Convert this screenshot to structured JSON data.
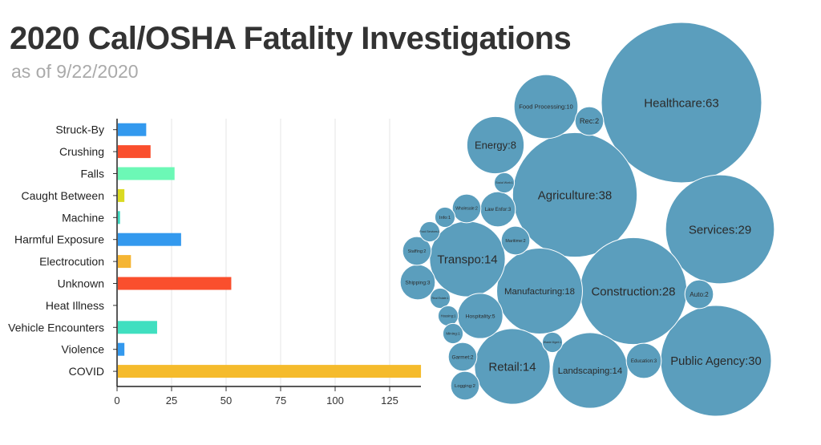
{
  "title": "2020 Cal/OSHA Fatality Investigations",
  "subtitle": "as of 9/22/2020",
  "chart_data": [
    {
      "type": "bar",
      "orientation": "horizontal",
      "categories": [
        "Struck-By",
        "Crushing",
        "Falls",
        "Caught Between",
        "Machine",
        "Harmful Exposure",
        "Electrocution",
        "Unknown",
        "Heat Illness",
        "Vehicle Encounters",
        "Violence",
        "COVID"
      ],
      "values": [
        13,
        15,
        26,
        3,
        1,
        29,
        6,
        52,
        0,
        18,
        3,
        139
      ],
      "colors": [
        "#3399ee",
        "#fa4f2d",
        "#6cf8b6",
        "#dada22",
        "#3bd8c0",
        "#3399ee",
        "#f5b533",
        "#fa4f2d",
        "#6cf8b6",
        "#40dfc0",
        "#3399ee",
        "#f5bb2c"
      ],
      "xticks": [
        0,
        25,
        50,
        75,
        100,
        125
      ],
      "xlim": [
        0,
        139
      ],
      "grid": true
    },
    {
      "type": "bubble",
      "color": "#5b9ebd",
      "items": [
        {
          "label": "Healthcare",
          "value": 63
        },
        {
          "label": "Agriculture",
          "value": 38
        },
        {
          "label": "Public Agency",
          "value": 30
        },
        {
          "label": "Services",
          "value": 29
        },
        {
          "label": "Construction",
          "value": 28
        },
        {
          "label": "Manufacturing",
          "value": 18
        },
        {
          "label": "Transpo",
          "value": 14
        },
        {
          "label": "Retail",
          "value": 14
        },
        {
          "label": "Landscaping",
          "value": 14
        },
        {
          "label": "Food Processing",
          "value": 10
        },
        {
          "label": "Energy",
          "value": 8
        },
        {
          "label": "Hospitality",
          "value": 5
        },
        {
          "label": "Education",
          "value": 3
        },
        {
          "label": "Shipping",
          "value": 3
        },
        {
          "label": "Law Enfor",
          "value": 3
        },
        {
          "label": "Staffing",
          "value": 2
        },
        {
          "label": "Wholesale",
          "value": 2
        },
        {
          "label": "Maritime",
          "value": 2
        },
        {
          "label": "Garmet",
          "value": 2
        },
        {
          "label": "Logging",
          "value": 2
        },
        {
          "label": "Auto",
          "value": 2
        },
        {
          "label": "Rec",
          "value": 2
        },
        {
          "label": "Info",
          "value": 1
        },
        {
          "label": "Food Services",
          "value": 1
        },
        {
          "label": "Social Work",
          "value": 1
        },
        {
          "label": "Real Estate",
          "value": 1
        },
        {
          "label": "Housing",
          "value": 1
        },
        {
          "label": "Mining",
          "value": 1
        },
        {
          "label": "Waste Mgmt",
          "value": 1
        }
      ]
    }
  ]
}
